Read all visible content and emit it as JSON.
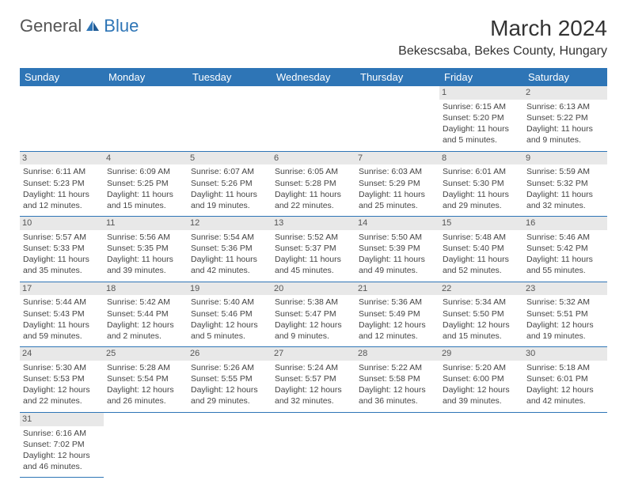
{
  "logo": {
    "text_a": "General",
    "text_b": "Blue"
  },
  "title": "March 2024",
  "location": "Bekescsaba, Bekes County, Hungary",
  "day_headers": [
    "Sunday",
    "Monday",
    "Tuesday",
    "Wednesday",
    "Thursday",
    "Friday",
    "Saturday"
  ],
  "colors": {
    "header_bg": "#2e75b6",
    "header_text": "#ffffff",
    "daynum_bg": "#e8e8e8",
    "border": "#2e75b6",
    "logo_gray": "#555555",
    "logo_blue": "#2e75b6"
  },
  "weeks": [
    [
      null,
      null,
      null,
      null,
      null,
      {
        "n": "1",
        "sr": "Sunrise: 6:15 AM",
        "ss": "Sunset: 5:20 PM",
        "dl": "Daylight: 11 hours and 5 minutes."
      },
      {
        "n": "2",
        "sr": "Sunrise: 6:13 AM",
        "ss": "Sunset: 5:22 PM",
        "dl": "Daylight: 11 hours and 9 minutes."
      }
    ],
    [
      {
        "n": "3",
        "sr": "Sunrise: 6:11 AM",
        "ss": "Sunset: 5:23 PM",
        "dl": "Daylight: 11 hours and 12 minutes."
      },
      {
        "n": "4",
        "sr": "Sunrise: 6:09 AM",
        "ss": "Sunset: 5:25 PM",
        "dl": "Daylight: 11 hours and 15 minutes."
      },
      {
        "n": "5",
        "sr": "Sunrise: 6:07 AM",
        "ss": "Sunset: 5:26 PM",
        "dl": "Daylight: 11 hours and 19 minutes."
      },
      {
        "n": "6",
        "sr": "Sunrise: 6:05 AM",
        "ss": "Sunset: 5:28 PM",
        "dl": "Daylight: 11 hours and 22 minutes."
      },
      {
        "n": "7",
        "sr": "Sunrise: 6:03 AM",
        "ss": "Sunset: 5:29 PM",
        "dl": "Daylight: 11 hours and 25 minutes."
      },
      {
        "n": "8",
        "sr": "Sunrise: 6:01 AM",
        "ss": "Sunset: 5:30 PM",
        "dl": "Daylight: 11 hours and 29 minutes."
      },
      {
        "n": "9",
        "sr": "Sunrise: 5:59 AM",
        "ss": "Sunset: 5:32 PM",
        "dl": "Daylight: 11 hours and 32 minutes."
      }
    ],
    [
      {
        "n": "10",
        "sr": "Sunrise: 5:57 AM",
        "ss": "Sunset: 5:33 PM",
        "dl": "Daylight: 11 hours and 35 minutes."
      },
      {
        "n": "11",
        "sr": "Sunrise: 5:56 AM",
        "ss": "Sunset: 5:35 PM",
        "dl": "Daylight: 11 hours and 39 minutes."
      },
      {
        "n": "12",
        "sr": "Sunrise: 5:54 AM",
        "ss": "Sunset: 5:36 PM",
        "dl": "Daylight: 11 hours and 42 minutes."
      },
      {
        "n": "13",
        "sr": "Sunrise: 5:52 AM",
        "ss": "Sunset: 5:37 PM",
        "dl": "Daylight: 11 hours and 45 minutes."
      },
      {
        "n": "14",
        "sr": "Sunrise: 5:50 AM",
        "ss": "Sunset: 5:39 PM",
        "dl": "Daylight: 11 hours and 49 minutes."
      },
      {
        "n": "15",
        "sr": "Sunrise: 5:48 AM",
        "ss": "Sunset: 5:40 PM",
        "dl": "Daylight: 11 hours and 52 minutes."
      },
      {
        "n": "16",
        "sr": "Sunrise: 5:46 AM",
        "ss": "Sunset: 5:42 PM",
        "dl": "Daylight: 11 hours and 55 minutes."
      }
    ],
    [
      {
        "n": "17",
        "sr": "Sunrise: 5:44 AM",
        "ss": "Sunset: 5:43 PM",
        "dl": "Daylight: 11 hours and 59 minutes."
      },
      {
        "n": "18",
        "sr": "Sunrise: 5:42 AM",
        "ss": "Sunset: 5:44 PM",
        "dl": "Daylight: 12 hours and 2 minutes."
      },
      {
        "n": "19",
        "sr": "Sunrise: 5:40 AM",
        "ss": "Sunset: 5:46 PM",
        "dl": "Daylight: 12 hours and 5 minutes."
      },
      {
        "n": "20",
        "sr": "Sunrise: 5:38 AM",
        "ss": "Sunset: 5:47 PM",
        "dl": "Daylight: 12 hours and 9 minutes."
      },
      {
        "n": "21",
        "sr": "Sunrise: 5:36 AM",
        "ss": "Sunset: 5:49 PM",
        "dl": "Daylight: 12 hours and 12 minutes."
      },
      {
        "n": "22",
        "sr": "Sunrise: 5:34 AM",
        "ss": "Sunset: 5:50 PM",
        "dl": "Daylight: 12 hours and 15 minutes."
      },
      {
        "n": "23",
        "sr": "Sunrise: 5:32 AM",
        "ss": "Sunset: 5:51 PM",
        "dl": "Daylight: 12 hours and 19 minutes."
      }
    ],
    [
      {
        "n": "24",
        "sr": "Sunrise: 5:30 AM",
        "ss": "Sunset: 5:53 PM",
        "dl": "Daylight: 12 hours and 22 minutes."
      },
      {
        "n": "25",
        "sr": "Sunrise: 5:28 AM",
        "ss": "Sunset: 5:54 PM",
        "dl": "Daylight: 12 hours and 26 minutes."
      },
      {
        "n": "26",
        "sr": "Sunrise: 5:26 AM",
        "ss": "Sunset: 5:55 PM",
        "dl": "Daylight: 12 hours and 29 minutes."
      },
      {
        "n": "27",
        "sr": "Sunrise: 5:24 AM",
        "ss": "Sunset: 5:57 PM",
        "dl": "Daylight: 12 hours and 32 minutes."
      },
      {
        "n": "28",
        "sr": "Sunrise: 5:22 AM",
        "ss": "Sunset: 5:58 PM",
        "dl": "Daylight: 12 hours and 36 minutes."
      },
      {
        "n": "29",
        "sr": "Sunrise: 5:20 AM",
        "ss": "Sunset: 6:00 PM",
        "dl": "Daylight: 12 hours and 39 minutes."
      },
      {
        "n": "30",
        "sr": "Sunrise: 5:18 AM",
        "ss": "Sunset: 6:01 PM",
        "dl": "Daylight: 12 hours and 42 minutes."
      }
    ],
    [
      {
        "n": "31",
        "sr": "Sunrise: 6:16 AM",
        "ss": "Sunset: 7:02 PM",
        "dl": "Daylight: 12 hours and 46 minutes."
      },
      null,
      null,
      null,
      null,
      null,
      null
    ]
  ]
}
